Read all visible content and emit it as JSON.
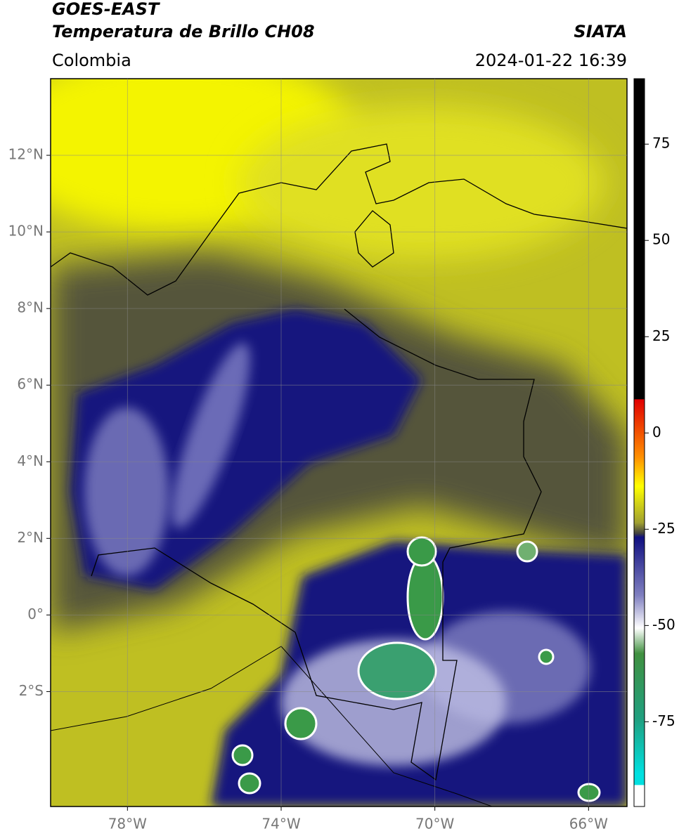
{
  "header": {
    "title": "GOES-EAST",
    "subtitle": "Temperatura de Brillo CH08",
    "organization": "SIATA",
    "region": "Colombia",
    "datetime": "2024-01-22 16:39"
  },
  "map": {
    "xlim": [
      -80,
      -65
    ],
    "ylim": [
      -5,
      14
    ],
    "xticks": [
      {
        "value": -78,
        "label": "78°W"
      },
      {
        "value": -74,
        "label": "74°W"
      },
      {
        "value": -70,
        "label": "70°W"
      },
      {
        "value": -66,
        "label": "66°W"
      }
    ],
    "yticks": [
      {
        "value": 12,
        "label": "12°N"
      },
      {
        "value": 10,
        "label": "10°N"
      },
      {
        "value": 8,
        "label": "8°N"
      },
      {
        "value": 6,
        "label": "6°N"
      },
      {
        "value": 4,
        "label": "4°N"
      },
      {
        "value": 2,
        "label": "2°N"
      },
      {
        "value": 0,
        "label": "0°"
      },
      {
        "value": -2,
        "label": "2°S"
      }
    ]
  },
  "colorbar": {
    "ylim": [
      -97,
      92
    ],
    "yticks": [
      75,
      50,
      25,
      0,
      -25,
      -50,
      -75
    ]
  }
}
